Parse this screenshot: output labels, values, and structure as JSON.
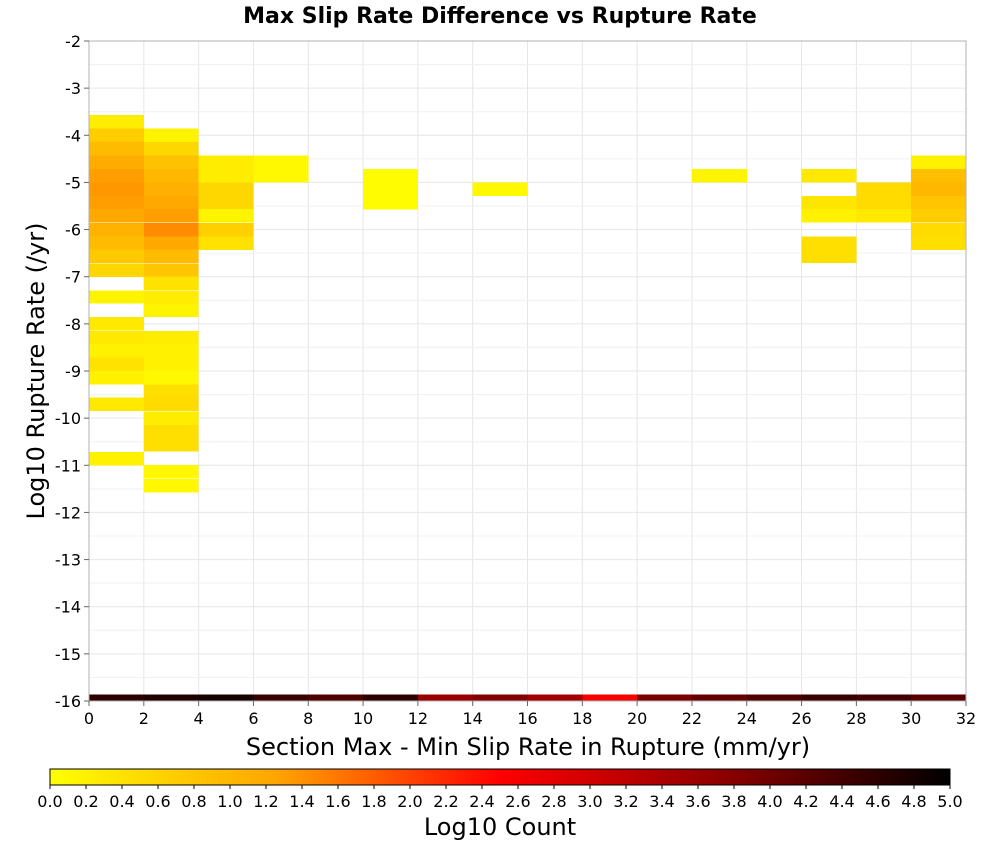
{
  "chart_data": {
    "type": "heatmap",
    "title": "Max Slip Rate Difference vs Rupture Rate",
    "xlabel": "Section Max - Min Slip Rate in Rupture (mm/yr)",
    "ylabel": "Log10 Rupture Rate (/yr)",
    "xlim": [
      0,
      32
    ],
    "ylim": [
      -16,
      -2
    ],
    "x_bin_width": 2,
    "y_bin_height": 0.2857,
    "x_ticks": [
      "0",
      "2",
      "4",
      "6",
      "8",
      "10",
      "12",
      "14",
      "16",
      "18",
      "20",
      "22",
      "24",
      "26",
      "28",
      "30",
      "32"
    ],
    "y_ticks": [
      "-2",
      "-3",
      "-4",
      "-5",
      "-6",
      "-7",
      "-8",
      "-9",
      "-10",
      "-11",
      "-12",
      "-13",
      "-14",
      "-15",
      "-16"
    ],
    "grid": true,
    "colorbar": {
      "label": "Log10 Count",
      "min": 0.0,
      "max": 5.0,
      "ticks": [
        "0.0",
        "0.2",
        "0.4",
        "0.6",
        "0.8",
        "1.0",
        "1.2",
        "1.4",
        "1.6",
        "1.8",
        "2.0",
        "2.2",
        "2.4",
        "2.6",
        "2.8",
        "3.0",
        "3.2",
        "3.4",
        "3.6",
        "3.8",
        "4.0",
        "4.2",
        "4.4",
        "4.6",
        "4.8",
        "5.0"
      ],
      "colors": [
        "#ffff00",
        "#ffa500",
        "#ff0000",
        "#8b0000",
        "#000000"
      ]
    },
    "cells": [
      {
        "x": 1,
        "y": -3.71,
        "v": 0.25
      },
      {
        "x": 1,
        "y": -4.0,
        "v": 0.7
      },
      {
        "x": 1,
        "y": -4.29,
        "v": 0.95
      },
      {
        "x": 1,
        "y": -4.57,
        "v": 1.15
      },
      {
        "x": 1,
        "y": -4.86,
        "v": 1.3
      },
      {
        "x": 1,
        "y": -5.14,
        "v": 1.35
      },
      {
        "x": 1,
        "y": -5.43,
        "v": 1.3
      },
      {
        "x": 1,
        "y": -5.71,
        "v": 1.2
      },
      {
        "x": 1,
        "y": -6.0,
        "v": 1.05
      },
      {
        "x": 1,
        "y": -6.29,
        "v": 0.95
      },
      {
        "x": 1,
        "y": -6.57,
        "v": 0.75
      },
      {
        "x": 1,
        "y": -6.86,
        "v": 0.55
      },
      {
        "x": 1,
        "y": -7.43,
        "v": 0.15
      },
      {
        "x": 1,
        "y": -8.0,
        "v": 0.3
      },
      {
        "x": 1,
        "y": -8.29,
        "v": 0.3
      },
      {
        "x": 1,
        "y": -8.57,
        "v": 0.2
      },
      {
        "x": 1,
        "y": -8.86,
        "v": 0.4
      },
      {
        "x": 1,
        "y": -9.14,
        "v": 0.2
      },
      {
        "x": 1,
        "y": -9.71,
        "v": 0.3
      },
      {
        "x": 1,
        "y": -10.86,
        "v": 0.2
      },
      {
        "x": 3,
        "y": -4.0,
        "v": 0.15
      },
      {
        "x": 3,
        "y": -4.29,
        "v": 0.55
      },
      {
        "x": 3,
        "y": -4.57,
        "v": 0.85
      },
      {
        "x": 3,
        "y": -4.86,
        "v": 1.0
      },
      {
        "x": 3,
        "y": -5.14,
        "v": 1.1
      },
      {
        "x": 3,
        "y": -5.43,
        "v": 1.2
      },
      {
        "x": 3,
        "y": -5.71,
        "v": 1.3
      },
      {
        "x": 3,
        "y": -6.0,
        "v": 1.45
      },
      {
        "x": 3,
        "y": -6.29,
        "v": 1.2
      },
      {
        "x": 3,
        "y": -6.57,
        "v": 0.95
      },
      {
        "x": 3,
        "y": -6.86,
        "v": 0.8
      },
      {
        "x": 3,
        "y": -7.14,
        "v": 0.4
      },
      {
        "x": 3,
        "y": -7.43,
        "v": 0.25
      },
      {
        "x": 3,
        "y": -7.71,
        "v": 0.15
      },
      {
        "x": 3,
        "y": -8.29,
        "v": 0.25
      },
      {
        "x": 3,
        "y": -8.57,
        "v": 0.2
      },
      {
        "x": 3,
        "y": -8.86,
        "v": 0.2
      },
      {
        "x": 3,
        "y": -9.14,
        "v": 0.1
      },
      {
        "x": 3,
        "y": -9.43,
        "v": 0.45
      },
      {
        "x": 3,
        "y": -9.71,
        "v": 0.5
      },
      {
        "x": 3,
        "y": -10.0,
        "v": 0.25
      },
      {
        "x": 3,
        "y": -10.29,
        "v": 0.45
      },
      {
        "x": 3,
        "y": -10.57,
        "v": 0.45
      },
      {
        "x": 3,
        "y": -11.14,
        "v": 0.1
      },
      {
        "x": 3,
        "y": -11.43,
        "v": 0.1
      },
      {
        "x": 5,
        "y": -4.57,
        "v": 0.25
      },
      {
        "x": 5,
        "y": -4.86,
        "v": 0.25
      },
      {
        "x": 5,
        "y": -5.14,
        "v": 0.55
      },
      {
        "x": 5,
        "y": -5.43,
        "v": 0.55
      },
      {
        "x": 5,
        "y": -5.71,
        "v": 0.15
      },
      {
        "x": 5,
        "y": -6.0,
        "v": 0.65
      },
      {
        "x": 5,
        "y": -6.29,
        "v": 0.4
      },
      {
        "x": 7,
        "y": -4.57,
        "v": 0.1
      },
      {
        "x": 7,
        "y": -4.86,
        "v": 0.1
      },
      {
        "x": 11,
        "y": -4.86,
        "v": 0.05
      },
      {
        "x": 11,
        "y": -5.14,
        "v": 0.05
      },
      {
        "x": 11,
        "y": -5.43,
        "v": 0.05
      },
      {
        "x": 15,
        "y": -5.14,
        "v": 0.1
      },
      {
        "x": 23,
        "y": -4.86,
        "v": 0.15
      },
      {
        "x": 27,
        "y": -4.86,
        "v": 0.3
      },
      {
        "x": 27,
        "y": -5.43,
        "v": 0.35
      },
      {
        "x": 27,
        "y": -5.71,
        "v": 0.2
      },
      {
        "x": 27,
        "y": -6.29,
        "v": 0.45
      },
      {
        "x": 27,
        "y": -6.57,
        "v": 0.45
      },
      {
        "x": 29,
        "y": -5.14,
        "v": 0.5
      },
      {
        "x": 29,
        "y": -5.43,
        "v": 0.5
      },
      {
        "x": 29,
        "y": -5.71,
        "v": 0.3
      },
      {
        "x": 31,
        "y": -4.57,
        "v": 0.2
      },
      {
        "x": 31,
        "y": -4.86,
        "v": 0.9
      },
      {
        "x": 31,
        "y": -5.14,
        "v": 1.0
      },
      {
        "x": 31,
        "y": -5.43,
        "v": 0.8
      },
      {
        "x": 31,
        "y": -5.71,
        "v": 0.7
      },
      {
        "x": 31,
        "y": -6.0,
        "v": 0.5
      },
      {
        "x": 31,
        "y": -6.29,
        "v": 0.45
      },
      {
        "x": 1,
        "y": -16.0,
        "v": 4.6
      },
      {
        "x": 3,
        "y": -16.0,
        "v": 4.7
      },
      {
        "x": 5,
        "y": -16.0,
        "v": 4.8
      },
      {
        "x": 7,
        "y": -16.0,
        "v": 4.5
      },
      {
        "x": 9,
        "y": -16.0,
        "v": 4.3
      },
      {
        "x": 11,
        "y": -16.0,
        "v": 4.6
      },
      {
        "x": 13,
        "y": -16.0,
        "v": 3.6
      },
      {
        "x": 15,
        "y": -16.0,
        "v": 3.8
      },
      {
        "x": 17,
        "y": -16.0,
        "v": 3.5
      },
      {
        "x": 19,
        "y": -16.0,
        "v": 2.6
      },
      {
        "x": 21,
        "y": -16.0,
        "v": 3.9
      },
      {
        "x": 23,
        "y": -16.0,
        "v": 4.1
      },
      {
        "x": 25,
        "y": -16.0,
        "v": 4.3
      },
      {
        "x": 27,
        "y": -16.0,
        "v": 4.5
      },
      {
        "x": 29,
        "y": -16.0,
        "v": 4.4
      },
      {
        "x": 31,
        "y": -16.0,
        "v": 4.2
      }
    ]
  }
}
